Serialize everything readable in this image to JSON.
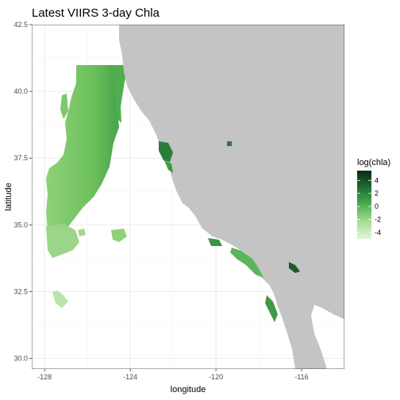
{
  "chart_data": {
    "type": "heatmap",
    "title": "Latest VIIRS 3-day Chla",
    "xlabel": "longitude",
    "ylabel": "latitude",
    "xlim": [
      -128.6,
      -114.0
    ],
    "ylim": [
      29.6,
      42.5
    ],
    "x_ticks": [
      -128,
      -124,
      -120,
      -116
    ],
    "x_tick_labels": [
      "-128",
      "-124",
      "-120",
      "-116"
    ],
    "y_ticks": [
      30.0,
      32.5,
      35.0,
      37.5,
      40.0,
      42.5
    ],
    "y_tick_labels": [
      "30.0",
      "32.5",
      "35.0",
      "37.5",
      "40.0",
      "42.5"
    ],
    "grid": true,
    "legend": {
      "title": "log(chla)",
      "position": "right",
      "ticks": [
        4,
        2,
        0,
        -2,
        -4
      ],
      "tick_labels": [
        "4",
        "2",
        "0",
        "-2",
        "-4"
      ],
      "range": [
        -5,
        5.5
      ]
    },
    "colors": {
      "land": "#c4c4c4",
      "panel": "#ffffff",
      "border": "#333333",
      "grid": "#ebebeb",
      "low": "#d4f0c4",
      "mid": "#4caf50",
      "high": "#0b2a12"
    }
  }
}
